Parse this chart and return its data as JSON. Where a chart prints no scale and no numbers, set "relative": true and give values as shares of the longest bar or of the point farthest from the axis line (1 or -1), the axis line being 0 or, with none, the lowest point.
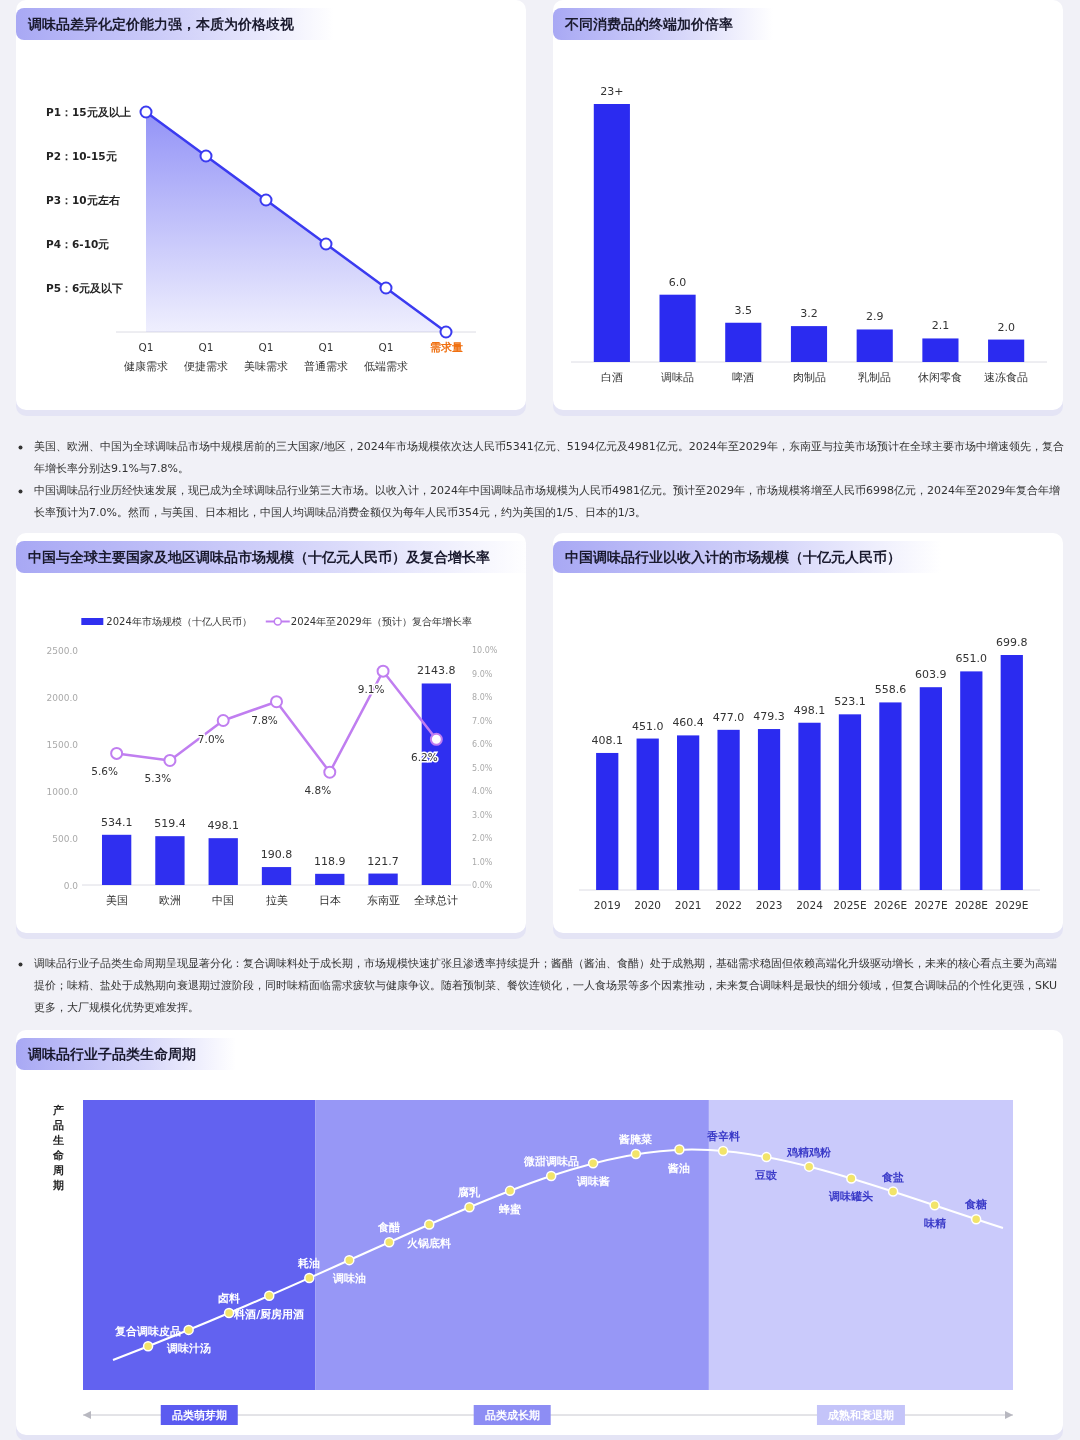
{
  "chart_data": [
    {
      "type": "area",
      "title": "调味品差异化定价能力强，本质为价格歧视",
      "categories": [
        "Q1\n健康需求",
        "Q1\n便捷需求",
        "Q1\n美味需求",
        "Q1\n普通需求",
        "Q1\n低端需求",
        null
      ],
      "xlabel": "需求量",
      "values": [
        1,
        0.8,
        0.6,
        0.4,
        0.2,
        0
      ],
      "color": "#3b3bf0",
      "marker": "circle",
      "relative": true,
      "annotations": [
        "P1：15元及以上",
        "P2：10-15元",
        "P3：10元左右",
        "P4：6-10元",
        "P5：6元及以下"
      ]
    },
    {
      "type": "bar",
      "title": "不同消费品的终端加价倍率",
      "categories": [
        "白酒",
        "调味品",
        "啤酒",
        "肉制品",
        "乳制品",
        "休闲零食",
        "速冻食品"
      ],
      "values": [
        23,
        6.0,
        3.5,
        3.2,
        2.9,
        2.1,
        2.0
      ],
      "value_labels": [
        "23+",
        "6.0",
        "3.5",
        "3.2",
        "2.9",
        "2.1",
        "2.0"
      ],
      "color": "#2b2bf0"
    },
    {
      "type": "other",
      "annotations": [
        "美国、欧洲、中国为全球调味品市场中规模居前的三大国家/地区，2024年市场规模依次达人民币5341亿元、5194亿元及4981亿元。2024年至2029年，东南亚与拉美市场预计在全球主要市场中增速领先，复合年增长率分别达9.1%与7.8%。",
        "中国调味品行业历经快速发展，现已成为全球调味品行业第三大市场。以收入计，2024年中国调味品市场规模为人民币4981亿元。预计至2029年，市场规模将增至人民币6998亿元，2024年至2029年复合年增长率预计为7.0%。然而，与美国、日本相比，中国人均调味品消费金额仅为每年人民币354元，约为美国的1/5、日本的1/3。"
      ]
    },
    {
      "type": "bar",
      "title": "中国与全球主要国家及地区调味品市场规模（十亿元人民币）及复合增长率",
      "categories": [
        "美国",
        "欧洲",
        "中国",
        "拉美",
        "日本",
        "东南亚",
        "全球总计"
      ],
      "legend": "top",
      "marker": "circle",
      "series": [
        {
          "name": "2024年市场规模（十亿人民币）",
          "type": "bar",
          "color": "#2f2ff0",
          "values": [
            534.1,
            519.4,
            498.1,
            190.8,
            118.9,
            121.7,
            2143.8
          ],
          "value_labels": [
            "534.1",
            "519.4",
            "498.1",
            "190.8",
            "118.9",
            "121.7",
            "2143.8"
          ]
        },
        {
          "name": "2024年至2029年（预计）复合年增长率",
          "type": "line",
          "axis": "y2",
          "color": "#c07ef0",
          "values": [
            5.6,
            5.3,
            7.0,
            7.8,
            4.8,
            9.1,
            6.2
          ],
          "value_labels": [
            "5.6%",
            "5.3%",
            "7.0%",
            "7.8%",
            "4.8%",
            "9.1%",
            "6.2%"
          ]
        }
      ],
      "ylim": [
        0,
        2500
      ],
      "yticks": [
        {
          "value": 0,
          "label": "0.0"
        },
        {
          "value": 500,
          "label": "500.0"
        },
        {
          "value": 1000,
          "label": "1000.0"
        },
        {
          "value": 1500,
          "label": "1500.0"
        },
        {
          "value": 2000,
          "label": "2000.0"
        },
        {
          "value": 2500,
          "label": "2500.0"
        }
      ],
      "y2lim": [
        0,
        10
      ],
      "y2ticks": [
        {
          "value": 0,
          "label": "0.0%"
        },
        {
          "value": 1,
          "label": "1.0%"
        },
        {
          "value": 2,
          "label": "2.0%"
        },
        {
          "value": 3,
          "label": "3.0%"
        },
        {
          "value": 4,
          "label": "4.0%"
        },
        {
          "value": 5,
          "label": "5.0%"
        },
        {
          "value": 6,
          "label": "6.0%"
        },
        {
          "value": 7,
          "label": "7.0%"
        },
        {
          "value": 8,
          "label": "8.0%"
        },
        {
          "value": 9,
          "label": "9.0%"
        },
        {
          "value": 10,
          "label": "10.0%"
        }
      ]
    },
    {
      "type": "bar",
      "title": "中国调味品行业以收入计的市场规模（十亿元人民币）",
      "categories": [
        "2019",
        "2020",
        "2021",
        "2022",
        "2023",
        "2024",
        "2025E",
        "2026E",
        "2027E",
        "2028E",
        "2029E"
      ],
      "values": [
        408.1,
        451.0,
        460.4,
        477.0,
        479.3,
        498.1,
        523.1,
        558.6,
        603.9,
        651.0,
        699.8
      ],
      "value_labels": [
        "408.1",
        "451.0",
        "460.4",
        "477.0",
        "479.3",
        "498.1",
        "523.1",
        "558.6",
        "603.9",
        "651.0",
        "699.8"
      ],
      "color": "#2b2bf0"
    },
    {
      "type": "other",
      "annotations": [
        "调味品行业子品类生命周期呈现显著分化：复合调味料处于成长期，市场规模快速扩张且渗透率持续提升；酱醋（酱油、食醋）处于成熟期，基础需求稳固但依赖高端化升级驱动增长，未来的核心看点主要为高端提价；味精、盐处于成熟期向衰退期过渡阶段，同时味精面临需求疲软与健康争议。随着预制菜、餐饮连锁化，一人食场景等多个因素推动，未来复合调味料是最快的细分领域，但复合调味品的个性化更强，SKU更多，大厂规模化优势更难发挥。"
      ]
    },
    {
      "type": "other",
      "title": "调味品行业子品类生命周期",
      "ylabel": "产品生命周期",
      "categories": [
        "品类萌芽期",
        "品类成长期",
        "成熟和衰退期"
      ],
      "annotations": [
        "复合调味皮品",
        "调味汁汤",
        "卤料",
        "料酒/厨房用酒",
        "耗油",
        "调味油",
        "食醋",
        "火锅底料",
        "腐乳",
        "蜂蜜",
        "微甜调味品",
        "调味酱",
        "酱腌菜",
        "酱油",
        "香辛料",
        "豆豉",
        "鸡精鸡粉",
        "调味罐头",
        "食盐",
        "味精",
        "食糖"
      ]
    }
  ]
}
